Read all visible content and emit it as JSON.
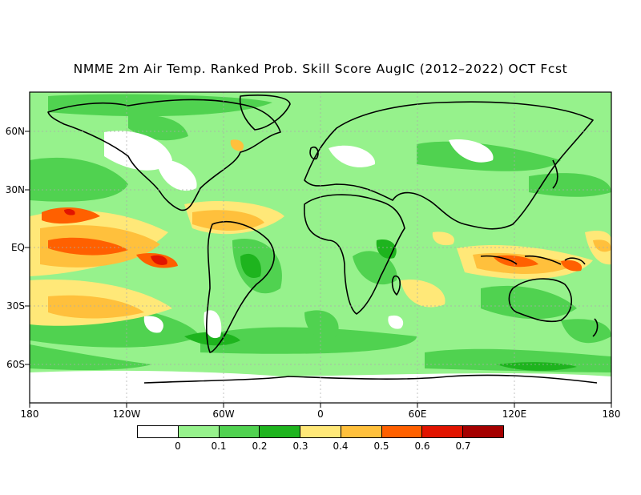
{
  "title": "NMME 2m Air Temp. Ranked Prob. Skill Score AugIC (2012–2022) OCT Fcst",
  "axes": {
    "x_ticks": [
      "180",
      "120W",
      "60W",
      "0",
      "60E",
      "120E",
      "180"
    ],
    "y_ticks": [
      "60N",
      "30N",
      "EQ",
      "30S",
      "60S"
    ]
  },
  "colorbar": {
    "labels": [
      "0",
      "0.1",
      "0.2",
      "0.3",
      "0.4",
      "0.5",
      "0.6",
      "0.7"
    ],
    "colors": [
      "#ffffff",
      "#96f28c",
      "#50d250",
      "#1eb41e",
      "#ffe878",
      "#ffc03c",
      "#ff6000",
      "#e11400",
      "#a50000"
    ]
  },
  "palette": {
    "background": "#96f28c",
    "land_outline": "#000000",
    "grid": "#aaaaaa"
  }
}
